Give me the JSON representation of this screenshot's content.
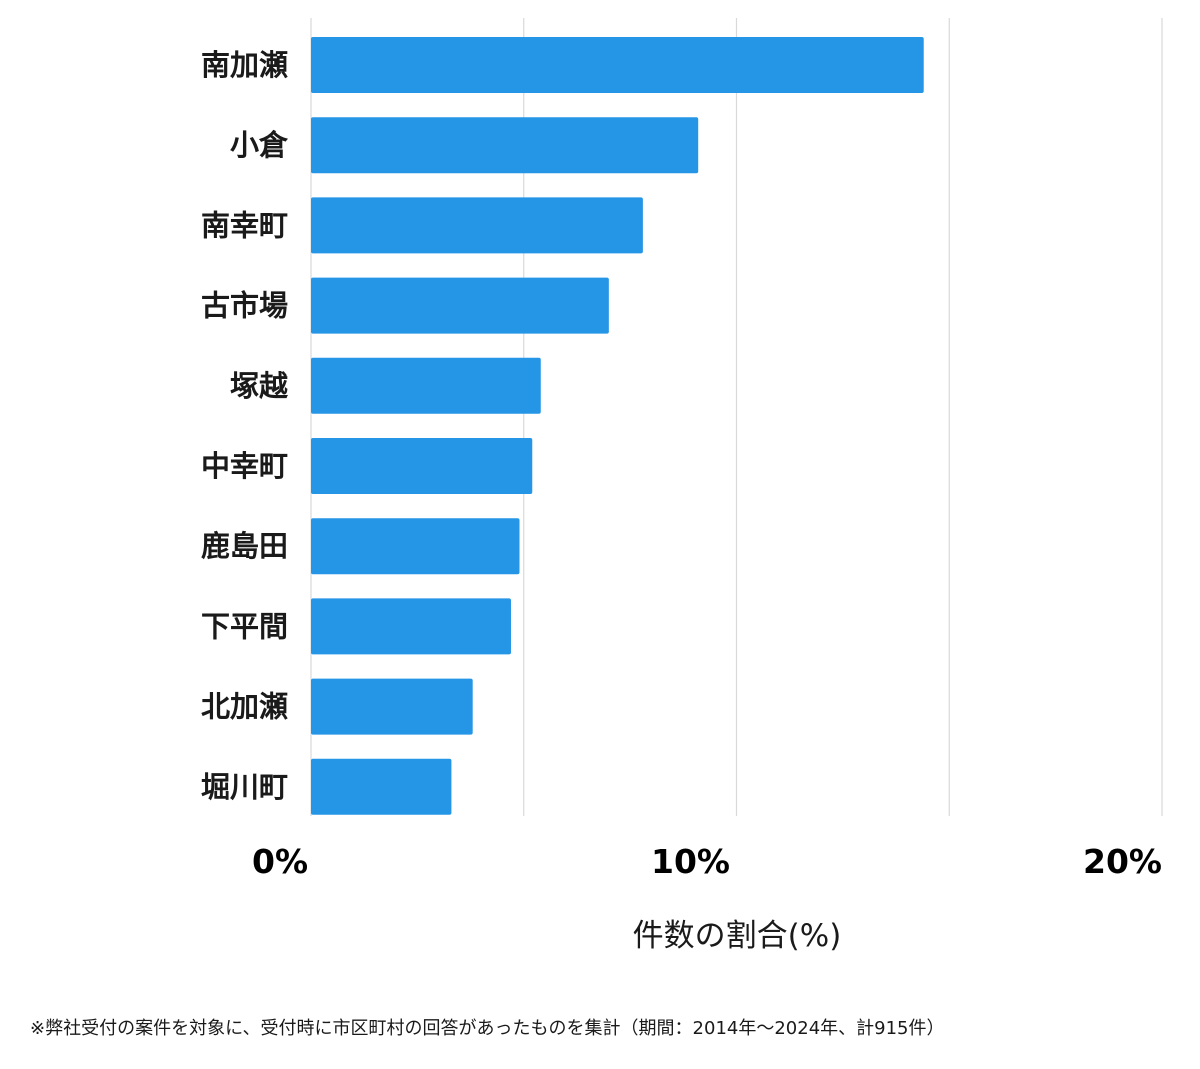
{
  "chart_data": {
    "type": "bar",
    "orientation": "horizontal",
    "categories": [
      "南加瀬",
      "小倉",
      "南幸町",
      "古市場",
      "塚越",
      "中幸町",
      "鹿島田",
      "下平間",
      "北加瀬",
      "堀川町"
    ],
    "values": [
      14.4,
      9.1,
      7.8,
      7.0,
      5.4,
      5.2,
      4.9,
      4.7,
      3.8,
      3.3
    ],
    "xlabel": "件数の割合(%)",
    "xlim": [
      0,
      20
    ],
    "x_ticks": [
      0,
      10,
      20
    ],
    "x_tick_labels": [
      "0%",
      "10%",
      "20%"
    ],
    "grid_values": [
      0,
      5,
      10,
      15,
      20
    ],
    "grid": true,
    "bar_color": "#2595e6",
    "grid_color": "#d9d9d9"
  },
  "footnote": "※弊社受付の案件を対象に、受付時に市区町村の回答があったものを集計（期間：2014年～2024年、計915件）"
}
